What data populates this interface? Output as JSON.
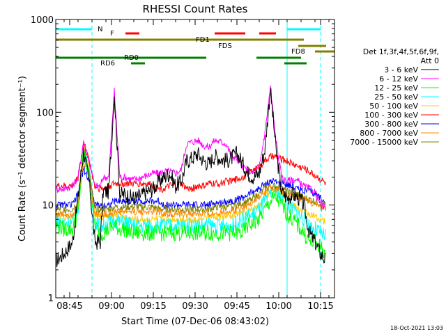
{
  "chart_data": {
    "type": "line",
    "title": "RHESSI Count Rates",
    "xlabel": "Start Time (07-Dec-06 08:43:02)",
    "ylabel": "Count Rate (s⁻¹ detector segment⁻¹)",
    "yscale": "log",
    "ylim": [
      1,
      1000
    ],
    "xlim_minutes": [
      -3,
      97
    ],
    "x_tick_labels": [
      "08:45",
      "09:00",
      "09:15",
      "09:30",
      "09:45",
      "10:00",
      "10:15"
    ],
    "y_tick_labels": [
      "1",
      "10",
      "100",
      "1000"
    ],
    "grid": false,
    "legend": {
      "header": [
        "Det 1f,3f,4f,5f,6f,9f,",
        "Att 0"
      ],
      "placement": "right",
      "entries": [
        {
          "label": "3 - 6 keV",
          "color": "#000000"
        },
        {
          "label": "6 - 12 keV",
          "color": "#ff00ff"
        },
        {
          "label": "12 - 25 keV",
          "color": "#00ff00"
        },
        {
          "label": "25 - 50 keV",
          "color": "#00ffff"
        },
        {
          "label": "50 - 100 keV",
          "color": "#ffcc00"
        },
        {
          "label": "100 - 300 keV",
          "color": "#ff0000"
        },
        {
          "label": "300 - 800 keV",
          "color": "#0000ff"
        },
        {
          "label": "800 - 7000 keV",
          "color": "#ff8800"
        },
        {
          "label": "7000 - 15000 keV",
          "color": "#808000"
        }
      ]
    },
    "series": [
      {
        "name": "3 - 6 keV",
        "color": "#000000",
        "x": [
          -3,
          0,
          3,
          5,
          7,
          9,
          11,
          13,
          14,
          16,
          18,
          20,
          22,
          24,
          26,
          28,
          30,
          32,
          34,
          36,
          38,
          40,
          42,
          44,
          46,
          48,
          50,
          52,
          54,
          56,
          58,
          60,
          62,
          64,
          66,
          68,
          70,
          72,
          74,
          76,
          78,
          80,
          82,
          84,
          86,
          88,
          90,
          92,
          94
        ],
        "values": [
          2.5,
          3,
          4,
          12,
          38,
          18,
          4,
          4,
          14,
          14,
          160,
          13,
          13,
          12,
          12,
          13,
          14,
          15,
          18,
          20,
          22,
          16,
          18,
          30,
          32,
          36,
          30,
          28,
          34,
          32,
          30,
          32,
          36,
          28,
          22,
          20,
          22,
          40,
          175,
          40,
          14,
          12,
          13,
          12,
          10,
          5,
          4,
          3,
          2.5
        ]
      },
      {
        "name": "6 - 12 keV",
        "color": "#ff00ff",
        "x": [
          -3,
          0,
          3,
          5,
          7,
          9,
          11,
          13,
          14,
          16,
          18,
          20,
          22,
          24,
          26,
          28,
          30,
          32,
          34,
          36,
          38,
          40,
          42,
          44,
          46,
          48,
          50,
          52,
          54,
          56,
          58,
          60,
          62,
          64,
          66,
          68,
          70,
          72,
          74,
          76,
          78,
          80,
          82,
          84,
          86,
          88,
          90,
          92,
          94
        ],
        "values": [
          15,
          15,
          16,
          20,
          50,
          30,
          16,
          16,
          20,
          20,
          170,
          20,
          20,
          19,
          19,
          20,
          21,
          22,
          22,
          23,
          23,
          22,
          24,
          46,
          48,
          50,
          44,
          42,
          50,
          48,
          46,
          34,
          32,
          26,
          24,
          22,
          25,
          60,
          185,
          50,
          20,
          18,
          19,
          18,
          16,
          15,
          14,
          10,
          9
        ]
      },
      {
        "name": "12 - 25 keV",
        "color": "#00ff00",
        "x": [
          -3,
          0,
          3,
          5,
          7,
          9,
          11,
          13,
          14,
          16,
          18,
          20,
          22,
          24,
          26,
          28,
          30,
          32,
          34,
          36,
          38,
          40,
          42,
          44,
          46,
          48,
          50,
          52,
          54,
          56,
          58,
          60,
          62,
          64,
          66,
          68,
          70,
          72,
          74,
          76,
          78,
          80,
          82,
          84,
          86,
          88,
          90,
          92,
          94
        ],
        "values": [
          6,
          5.5,
          5.5,
          8,
          38,
          20,
          6,
          5,
          5,
          5.5,
          6,
          5.5,
          5.5,
          5,
          5,
          5,
          5,
          5,
          5,
          5,
          5,
          5,
          5,
          5,
          5,
          5,
          5,
          5,
          5,
          5,
          5,
          5,
          5,
          5,
          6,
          6.5,
          7,
          9,
          11,
          12,
          10,
          8,
          7,
          6,
          5,
          4,
          4,
          3.5,
          3
        ]
      },
      {
        "name": "25 - 50 keV",
        "color": "#00ffff",
        "x": [
          -3,
          0,
          3,
          5,
          7,
          9,
          11,
          13,
          14,
          16,
          18,
          20,
          22,
          24,
          26,
          28,
          30,
          32,
          34,
          36,
          38,
          40,
          42,
          44,
          46,
          48,
          50,
          52,
          54,
          56,
          58,
          60,
          62,
          64,
          66,
          68,
          70,
          72,
          74,
          76,
          78,
          80,
          82,
          84,
          86,
          88,
          90,
          92,
          94
        ],
        "values": [
          7,
          6.5,
          6.5,
          9,
          40,
          22,
          7,
          6,
          6,
          6.5,
          7,
          6.5,
          6.5,
          6,
          6,
          6,
          6,
          6,
          6,
          6,
          6,
          6,
          6,
          6,
          6,
          6,
          6,
          6,
          6,
          6,
          6,
          6,
          6.5,
          7,
          7.5,
          8,
          9,
          11,
          13,
          14,
          12,
          10,
          9,
          8,
          7,
          6,
          5.5,
          5,
          4.5
        ]
      },
      {
        "name": "50 - 100 keV",
        "color": "#ffcc00",
        "x": [
          -3,
          0,
          3,
          5,
          7,
          9,
          11,
          13,
          14,
          16,
          18,
          20,
          22,
          24,
          26,
          28,
          30,
          32,
          34,
          36,
          38,
          40,
          42,
          44,
          46,
          48,
          50,
          52,
          54,
          56,
          58,
          60,
          62,
          64,
          66,
          68,
          70,
          72,
          74,
          76,
          78,
          80,
          82,
          84,
          86,
          88,
          90,
          92,
          94
        ],
        "values": [
          7.5,
          7.5,
          7.5,
          10,
          42,
          24,
          8,
          7.5,
          7.5,
          7.5,
          8,
          7.5,
          7.5,
          7,
          7,
          7,
          7,
          7,
          7,
          7,
          7,
          7,
          7,
          7,
          7,
          7,
          7.5,
          7.5,
          7.5,
          7.5,
          7.5,
          7.5,
          8,
          8,
          8.5,
          9,
          10,
          12,
          14,
          15,
          13,
          11,
          10,
          9,
          8.5,
          8,
          7.5,
          7,
          6.5
        ]
      },
      {
        "name": "100 - 300 keV",
        "color": "#ff0000",
        "x": [
          -3,
          0,
          3,
          5,
          7,
          9,
          11,
          13,
          14,
          16,
          18,
          20,
          22,
          24,
          26,
          28,
          30,
          32,
          34,
          36,
          38,
          40,
          42,
          44,
          46,
          48,
          50,
          52,
          54,
          56,
          58,
          60,
          62,
          64,
          66,
          68,
          70,
          72,
          74,
          76,
          78,
          80,
          82,
          84,
          86,
          88,
          90,
          92,
          94
        ],
        "values": [
          16,
          16,
          16,
          20,
          45,
          30,
          16,
          15,
          15,
          16,
          17,
          17,
          17,
          17,
          17,
          17,
          17,
          16,
          15,
          15,
          16,
          16,
          17,
          15,
          15,
          16,
          16,
          17,
          17,
          17,
          18,
          18,
          19,
          20,
          22,
          24,
          26,
          30,
          33,
          33,
          31,
          30,
          28,
          26,
          25,
          23,
          21,
          19,
          17
        ]
      },
      {
        "name": "300 - 800 keV",
        "color": "#0000ff",
        "x": [
          -3,
          0,
          3,
          5,
          7,
          9,
          11,
          13,
          14,
          16,
          18,
          20,
          22,
          24,
          26,
          28,
          30,
          32,
          34,
          36,
          38,
          40,
          42,
          44,
          46,
          48,
          50,
          52,
          54,
          56,
          58,
          60,
          62,
          64,
          66,
          68,
          70,
          72,
          74,
          76,
          78,
          80,
          82,
          84,
          86,
          88,
          90,
          92,
          94
        ],
        "values": [
          10,
          10,
          10,
          13,
          25,
          18,
          10,
          10,
          10,
          10,
          11,
          11,
          11,
          11,
          11,
          11,
          11,
          11,
          11,
          10,
          10,
          10,
          10,
          10,
          10,
          10,
          10,
          10,
          10.5,
          10.5,
          11,
          11,
          11.5,
          12,
          13,
          14,
          15,
          17,
          18,
          18,
          17,
          17,
          16,
          15,
          14.5,
          14,
          13,
          12,
          11
        ]
      },
      {
        "name": "800 - 7000 keV",
        "color": "#ff8800",
        "x": [
          -3,
          0,
          3,
          5,
          7,
          9,
          11,
          13,
          14,
          16,
          18,
          20,
          22,
          24,
          26,
          28,
          30,
          32,
          34,
          36,
          38,
          40,
          42,
          44,
          46,
          48,
          50,
          52,
          54,
          56,
          58,
          60,
          62,
          64,
          66,
          68,
          70,
          72,
          74,
          76,
          78,
          80,
          82,
          84,
          86,
          88,
          90,
          92,
          94
        ],
        "values": [
          8,
          8,
          8,
          10,
          30,
          20,
          8,
          8,
          8,
          8,
          8.5,
          8.5,
          8.5,
          8.5,
          8.5,
          8.5,
          8.5,
          8.5,
          8.5,
          8,
          8,
          8,
          8,
          8,
          8,
          8,
          8,
          8,
          8,
          8.5,
          8.5,
          8.5,
          9,
          9.5,
          10,
          11,
          12,
          13.5,
          15,
          15,
          14,
          13,
          12,
          12,
          11.5,
          11,
          10,
          9.5,
          9
        ]
      },
      {
        "name": "7000 - 15000 keV",
        "color": "#808000",
        "x": [
          -3,
          0,
          3,
          5,
          7,
          9,
          11,
          13,
          14,
          16,
          18,
          20,
          22,
          24,
          26,
          28,
          30,
          32,
          34,
          36,
          38,
          40,
          42,
          44,
          46,
          48,
          50,
          52,
          54,
          56,
          58,
          60,
          62,
          64,
          66,
          68,
          70,
          72,
          74,
          76,
          78,
          80,
          82,
          84,
          86,
          88,
          90,
          92,
          94
        ],
        "values": [
          9,
          9,
          9,
          11,
          35,
          22,
          9,
          9,
          9,
          9,
          9.5,
          9.5,
          9.5,
          9.5,
          9.5,
          9.5,
          9.5,
          9.5,
          9,
          9,
          9,
          9,
          9,
          9,
          9,
          9,
          9,
          9,
          9.5,
          9.5,
          9.5,
          9.5,
          10,
          10.5,
          11,
          12,
          13,
          15,
          16,
          16,
          15,
          14,
          13,
          13,
          12,
          11.5,
          11,
          10.5,
          10
        ]
      }
    ],
    "vertical_lines": [
      {
        "x_min": 10,
        "color": "#00ffff"
      },
      {
        "x_min": 80,
        "color": "#00ffff"
      },
      {
        "x_min": 92,
        "color": "#00ffff"
      }
    ],
    "state_bars": [
      {
        "label": "N",
        "color": "#00ffff",
        "segments": [
          [
            -3,
            10
          ],
          [
            80,
            92
          ]
        ]
      },
      {
        "label": "F",
        "color": "#ff0000",
        "segments": [
          [
            22,
            27
          ],
          [
            54,
            65
          ],
          [
            70,
            76
          ]
        ]
      },
      {
        "label": "FD1",
        "color": "#808000",
        "segments": [
          [
            -3,
            86
          ]
        ]
      },
      {
        "label": "FDS",
        "color": "#808000",
        "segments": [
          [
            84,
            94
          ]
        ]
      },
      {
        "label": "FD8",
        "color": "#808000",
        "segments": [
          [
            90,
            97
          ]
        ]
      },
      {
        "label": "RD0",
        "color": "#008000",
        "segments": [
          [
            -3,
            51
          ],
          [
            69,
            85
          ]
        ]
      },
      {
        "label": "RD6",
        "color": "#008000",
        "segments": [
          [
            24,
            29
          ],
          [
            79,
            87
          ]
        ]
      }
    ],
    "annotation_text": "18-Oct-2021 13:03"
  }
}
